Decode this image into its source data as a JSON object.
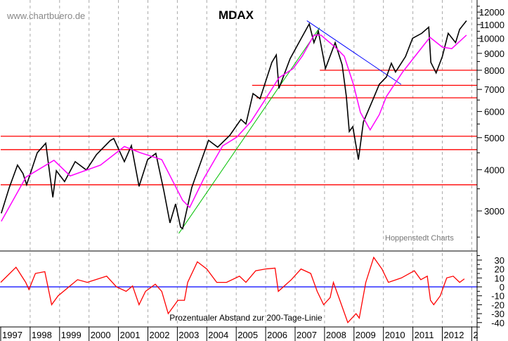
{
  "watermark": "www.chartbuero.de",
  "chart_data": [
    {
      "type": "line",
      "title": "MDAX",
      "credit": "Hoppenstedt Charts",
      "y_scale": "log",
      "ylim": [
        2300,
        13500
      ],
      "xlim": [
        1997.0,
        2013.2
      ],
      "y_ticks": [
        "12000",
        "11000",
        "10000",
        "9000",
        "8000",
        "7000",
        "6000",
        "5000",
        "4000",
        "3000"
      ],
      "x_tick_labels": [
        "1997",
        "1998",
        "1999",
        "2000",
        "2001",
        "2002",
        "2003",
        "2004",
        "2005",
        "2006",
        "2007",
        "2008",
        "2009",
        "2010",
        "2011",
        "2012",
        "2"
      ],
      "grid": "vertical dashed at year boundaries",
      "colors": {
        "price": "#000000",
        "ma200": "#ff00ff",
        "support": "#ff0000",
        "uptrend": "#00c000",
        "downtrend": "#0000ff"
      },
      "series": [
        {
          "key": "price",
          "x": [
            1997.02,
            1997.29,
            1997.57,
            1997.76,
            1997.88,
            1998.24,
            1998.53,
            1998.77,
            1998.89,
            1999.17,
            1999.53,
            1999.91,
            2000.25,
            2000.72,
            2000.84,
            2001.2,
            2001.44,
            2001.7,
            2001.99,
            2002.27,
            2002.54,
            2002.75,
            2002.94,
            2003.11,
            2003.18,
            2003.49,
            2004.06,
            2004.37,
            2004.78,
            2005.16,
            2005.33,
            2005.57,
            2005.81,
            2006.21,
            2006.36,
            2006.45,
            2006.83,
            2007.17,
            2007.48,
            2007.64,
            2007.79,
            2008.03,
            2008.36,
            2008.6,
            2008.74,
            2008.84,
            2008.96,
            2009.15,
            2009.32,
            2009.63,
            2009.86,
            2010.1,
            2010.27,
            2010.41,
            2010.75,
            2010.99,
            2011.3,
            2011.54,
            2011.61,
            2011.79,
            2012.0,
            2012.2,
            2012.45,
            2012.59,
            2012.82
          ],
          "y": [
            2950,
            3530,
            4130,
            3890,
            3600,
            4500,
            4810,
            3300,
            3970,
            3680,
            4230,
            3990,
            4440,
            4900,
            4970,
            4230,
            4730,
            3560,
            4290,
            4480,
            3460,
            2760,
            3150,
            2680,
            2650,
            3530,
            4910,
            4680,
            5080,
            5680,
            5500,
            6800,
            6560,
            8450,
            8900,
            7050,
            8670,
            9850,
            11050,
            9700,
            10500,
            8100,
            9700,
            8300,
            6670,
            5220,
            5400,
            4290,
            5580,
            6480,
            7250,
            7630,
            8400,
            7900,
            8800,
            10000,
            10350,
            10800,
            8450,
            7850,
            8800,
            10350,
            9700,
            10640,
            11300
          ]
        },
        {
          "key": "ma200",
          "x": [
            1997.02,
            1997.86,
            1998.81,
            1999.36,
            2000.39,
            2001.2,
            2001.75,
            2002.47,
            2003.18,
            2003.42,
            2003.9,
            2004.54,
            2005.02,
            2005.5,
            2006.05,
            2006.45,
            2006.93,
            2007.24,
            2007.64,
            2007.88,
            2008.36,
            2008.67,
            2008.98,
            2009.22,
            2009.55,
            2009.86,
            2010.1,
            2010.65,
            2011.13,
            2011.58,
            2012.0,
            2012.32,
            2012.82
          ],
          "y": [
            2790,
            3800,
            4270,
            3830,
            4130,
            4700,
            4500,
            4290,
            3230,
            3075,
            3760,
            4720,
            5020,
            5590,
            6660,
            7590,
            8090,
            8820,
            10220,
            10220,
            9400,
            8820,
            7250,
            5960,
            5280,
            5870,
            6660,
            7890,
            8950,
            10070,
            9400,
            9300,
            10220
          ]
        }
      ],
      "horizontal_lines": [
        {
          "value": 8000,
          "from": 2007.84
        },
        {
          "value": 7200,
          "from": 2005.54
        },
        {
          "value": 6600,
          "from": 2005.69
        },
        {
          "value": 5050,
          "from": 1997.0
        },
        {
          "value": 4600,
          "from": 1997.0
        },
        {
          "value": 3600,
          "from": 1997.0
        }
      ],
      "trend_lines": [
        {
          "key": "uptrend",
          "x": [
            2003.05,
            2007.83
          ],
          "y": [
            2565,
            10760
          ]
        },
        {
          "key": "downtrend",
          "x": [
            2007.4,
            2010.6
          ],
          "y": [
            11300,
            7250
          ]
        }
      ]
    },
    {
      "type": "line",
      "title": "Prozentualer Abstand zur 200-Tage-Linie",
      "ylim": [
        -48,
        40
      ],
      "y_ticks": [
        "30",
        "20",
        "10",
        "0",
        "-10",
        "-20",
        "-30",
        "-40"
      ],
      "zero_line_color": "#0000ff",
      "series_color": "#ff0000",
      "x": [
        1997.0,
        1997.52,
        1997.85,
        1997.96,
        1998.18,
        1998.5,
        1998.73,
        1998.95,
        1999.39,
        1999.61,
        1999.94,
        2000.6,
        2000.93,
        2001.26,
        2001.48,
        2001.7,
        2001.92,
        2002.25,
        2002.47,
        2002.69,
        2003.02,
        2003.24,
        2003.35,
        2003.68,
        2004.0,
        2004.34,
        2004.67,
        2005.11,
        2005.33,
        2005.66,
        2005.99,
        2006.32,
        2006.43,
        2006.87,
        2007.2,
        2007.53,
        2007.75,
        2007.97,
        2008.19,
        2008.3,
        2008.52,
        2008.79,
        2009.07,
        2009.18,
        2009.4,
        2009.67,
        2009.95,
        2010.17,
        2010.61,
        2011.05,
        2011.27,
        2011.49,
        2011.6,
        2011.71,
        2011.93,
        2012.15,
        2012.37,
        2012.59,
        2012.75
      ],
      "y": [
        5,
        22,
        5,
        -3,
        15,
        17,
        -20,
        -10,
        2,
        8,
        5,
        12,
        0,
        -5,
        1,
        -20,
        -5,
        3,
        -5,
        -30,
        -15,
        -15,
        5,
        28,
        20,
        5,
        5,
        12,
        5,
        18,
        20,
        21,
        -5,
        8,
        20,
        15,
        -5,
        -20,
        -12,
        5,
        -15,
        -40,
        -30,
        -35,
        5,
        33,
        20,
        5,
        10,
        18,
        8,
        12,
        -15,
        -20,
        -10,
        10,
        12,
        5,
        9
      ]
    }
  ]
}
